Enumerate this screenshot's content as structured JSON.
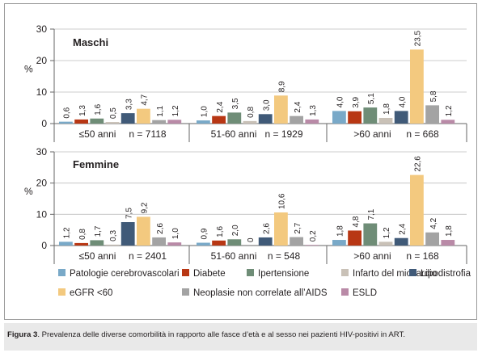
{
  "caption": {
    "label": "Figura 3",
    "text": ". Prevalenza delle diverse comorbilità in rapporto alle fasce d’età e al sesso nei pazienti HIV-positivi in ART."
  },
  "chart_data": {
    "type": "bar",
    "ylabel": "%",
    "ylim": [
      0,
      30
    ],
    "yticks": [
      0,
      10,
      20,
      30
    ],
    "grid": true,
    "legend_position": "bottom",
    "series": [
      {
        "name": "Patologie cerebrovascolari",
        "color": "#79a9c8"
      },
      {
        "name": "Diabete",
        "color": "#b83714"
      },
      {
        "name": "Ipertensione",
        "color": "#6f8d77"
      },
      {
        "name": "Infarto del miocardio",
        "color": "#c9c1b7"
      },
      {
        "name": "Lipodistrofia",
        "color": "#405a78"
      },
      {
        "name": "eGFR <60",
        "color": "#f3c97f"
      },
      {
        "name": "Neoplasie non correlate all’AIDS",
        "color": "#a3a3a3"
      },
      {
        "name": "ESLD",
        "color": "#b98aa7"
      }
    ],
    "panels": [
      {
        "title": "Maschi",
        "groups": [
          {
            "label": "≤50 anni",
            "n": "n = 7118",
            "values": [
              0.6,
              1.3,
              1.6,
              0.5,
              3.3,
              4.7,
              1.1,
              1.2
            ],
            "labels": [
              "0,6",
              "1,3",
              "1,6",
              "0,5",
              "3,3",
              "4,7",
              "1,1",
              "1,2"
            ]
          },
          {
            "label": "51-60 anni",
            "n": "n = 1929",
            "values": [
              1.0,
              2.4,
              3.5,
              0.8,
              3.0,
              8.9,
              2.4,
              1.3
            ],
            "labels": [
              "1,0",
              "2,4",
              "3,5",
              "0,8",
              "3,0",
              "8,9",
              "2,4",
              "1,3"
            ]
          },
          {
            "label": ">60 anni",
            "n": "n = 668",
            "values": [
              4.0,
              3.9,
              5.1,
              1.8,
              4.0,
              23.5,
              5.8,
              1.2
            ],
            "labels": [
              "4,0",
              "3,9",
              "5,1",
              "1,8",
              "4,0",
              "23,5",
              "5,8",
              "1,2"
            ]
          }
        ]
      },
      {
        "title": "Femmine",
        "groups": [
          {
            "label": "≤50 anni",
            "n": "n = 2401",
            "values": [
              1.2,
              0.8,
              1.7,
              0.3,
              7.5,
              9.2,
              2.6,
              1.0
            ],
            "labels": [
              "1,2",
              "0,8",
              "1,7",
              "0,3",
              "7,5",
              "9,2",
              "2,6",
              "1,0"
            ]
          },
          {
            "label": "51-60 anni",
            "n": "n = 548",
            "values": [
              0.9,
              1.6,
              2.0,
              0,
              2.6,
              10.6,
              2.7,
              0.2
            ],
            "labels": [
              "0,9",
              "1,6",
              "2,0",
              "0",
              "2,6",
              "10,6",
              "2,7",
              "0,2"
            ]
          },
          {
            "label": ">60 anni",
            "n": "n = 168",
            "values": [
              1.8,
              4.8,
              7.1,
              1.2,
              2.4,
              22.6,
              4.2,
              1.8
            ],
            "labels": [
              "1,8",
              "4,8",
              "7,1",
              "1,2",
              "2,4",
              "22,6",
              "4,2",
              "1,8"
            ]
          }
        ]
      }
    ]
  }
}
